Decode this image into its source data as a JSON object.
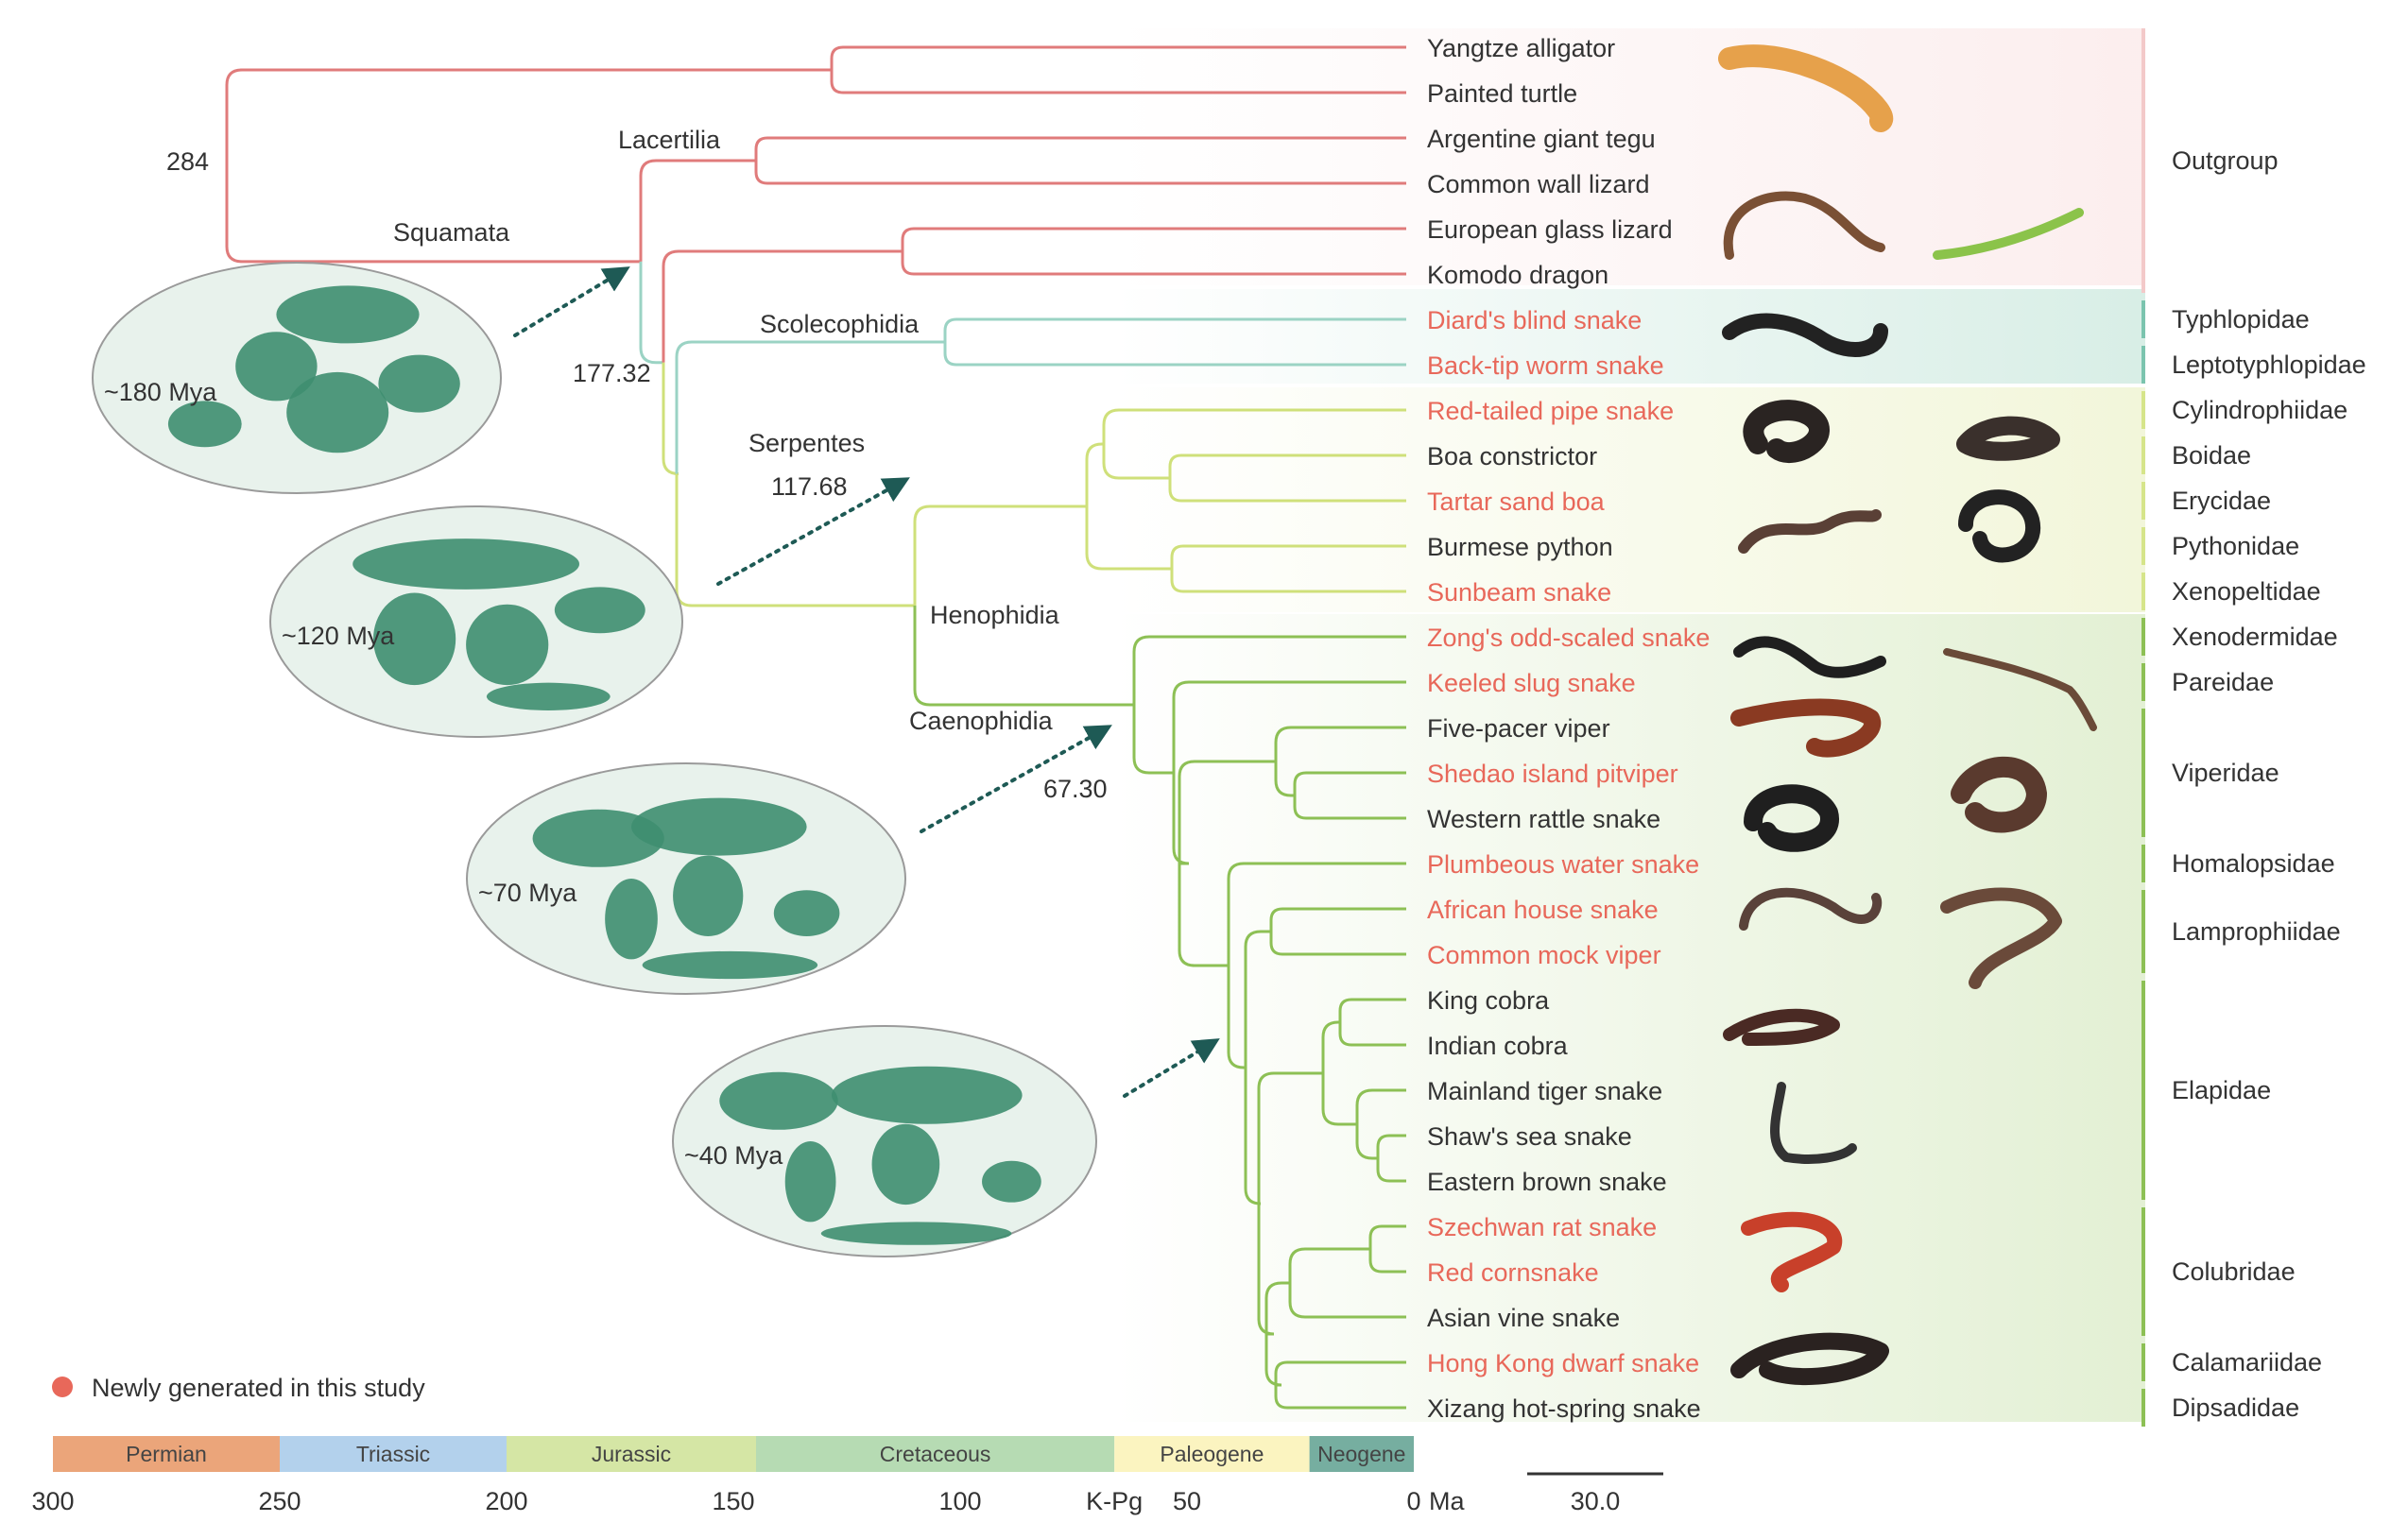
{
  "colors": {
    "outgroup": "#E07B7B",
    "scoleco": "#9BD3C4",
    "henophidia": "#CFE07A",
    "caenophidia": "#8DC055",
    "highlight": "#E8685A",
    "label": "#333333",
    "map_land": "#3E8E70",
    "map_sea": "#E8F2EC",
    "arrow": "#1E5A55"
  },
  "species": [
    {
      "name": "Yangtze alligator",
      "new": false
    },
    {
      "name": "Painted turtle",
      "new": false
    },
    {
      "name": "Argentine giant tegu",
      "new": false
    },
    {
      "name": "Common wall lizard",
      "new": false
    },
    {
      "name": "European glass lizard",
      "new": false
    },
    {
      "name": "Komodo dragon",
      "new": false
    },
    {
      "name": "Diard's blind snake",
      "new": true
    },
    {
      "name": "Back-tip worm snake",
      "new": true
    },
    {
      "name": "Red-tailed pipe snake",
      "new": true
    },
    {
      "name": "Boa constrictor",
      "new": false
    },
    {
      "name": "Tartar sand boa",
      "new": true
    },
    {
      "name": "Burmese python",
      "new": false
    },
    {
      "name": "Sunbeam snake",
      "new": true
    },
    {
      "name": "Zong's odd-scaled snake",
      "new": true
    },
    {
      "name": "Keeled slug snake",
      "new": true
    },
    {
      "name": "Five-pacer viper",
      "new": false
    },
    {
      "name": "Shedao island pitviper",
      "new": true
    },
    {
      "name": "Western rattle snake",
      "new": false
    },
    {
      "name": "Plumbeous water snake",
      "new": true
    },
    {
      "name": "African house snake",
      "new": true
    },
    {
      "name": "Common mock viper",
      "new": true
    },
    {
      "name": "King cobra",
      "new": false
    },
    {
      "name": "Indian cobra",
      "new": false
    },
    {
      "name": "Mainland tiger snake",
      "new": false
    },
    {
      "name": "Shaw's sea snake",
      "new": false
    },
    {
      "name": "Eastern brown snake",
      "new": false
    },
    {
      "name": "Szechwan rat snake",
      "new": true
    },
    {
      "name": "Red cornsnake",
      "new": true
    },
    {
      "name": "Asian vine snake",
      "new": false
    },
    {
      "name": "Hong Kong dwarf snake",
      "new": true
    },
    {
      "name": "Xizang hot-spring snake",
      "new": false
    }
  ],
  "families": [
    {
      "name": "Outgroup",
      "from": 0,
      "to": 5
    },
    {
      "name": "Typhlopidae",
      "from": 6,
      "to": 6
    },
    {
      "name": "Leptotyphlopidae",
      "from": 7,
      "to": 7
    },
    {
      "name": "Cylindrophiidae",
      "from": 8,
      "to": 8
    },
    {
      "name": "Boidae",
      "from": 9,
      "to": 9
    },
    {
      "name": "Erycidae",
      "from": 10,
      "to": 10
    },
    {
      "name": "Pythonidae",
      "from": 11,
      "to": 11
    },
    {
      "name": "Xenopeltidae",
      "from": 12,
      "to": 12
    },
    {
      "name": "Xenodermidae",
      "from": 13,
      "to": 13
    },
    {
      "name": "Pareidae",
      "from": 14,
      "to": 14
    },
    {
      "name": "Viperidae",
      "from": 15,
      "to": 17
    },
    {
      "name": "Homalopsidae",
      "from": 18,
      "to": 18
    },
    {
      "name": "Lamprophiidae",
      "from": 19,
      "to": 20
    },
    {
      "name": "Elapidae",
      "from": 21,
      "to": 25
    },
    {
      "name": "Colubridae",
      "from": 26,
      "to": 28
    },
    {
      "name": "Calamariidae",
      "from": 29,
      "to": 29
    },
    {
      "name": "Dipsadidae",
      "from": 30,
      "to": 30
    }
  ],
  "clades": {
    "squamata": "Squamata",
    "lacertilia": "Lacertilia",
    "scolecophidia": "Scolecophidia",
    "serpentes": "Serpentes",
    "henophidia": "Henophidia",
    "caenophidia": "Caenophidia"
  },
  "node_ages": {
    "root": "284",
    "squamata": "177.32",
    "serpentes": "117.68",
    "caenophidia": "67.30"
  },
  "maps": [
    {
      "label": "~180 Mya"
    },
    {
      "label": "~120 Mya"
    },
    {
      "label": "~70 Mya"
    },
    {
      "label": "~40 Mya"
    }
  ],
  "legend": {
    "new_label": "Newly generated in this study"
  },
  "timescale": {
    "periods": [
      {
        "name": "Permian",
        "start": 300,
        "end": 250,
        "color": "#EBA57A"
      },
      {
        "name": "Triassic",
        "start": 250,
        "end": 200,
        "color": "#B3D1EC"
      },
      {
        "name": "Jurassic",
        "start": 200,
        "end": 145,
        "color": "#D5E6A5"
      },
      {
        "name": "Cretaceous",
        "start": 145,
        "end": 66,
        "color": "#B6DBB3"
      },
      {
        "name": "Paleogene",
        "start": 66,
        "end": 23,
        "color": "#FBF4C0"
      },
      {
        "name": "Neogene",
        "start": 23,
        "end": 0,
        "color": "#76AEA0"
      }
    ],
    "ticks": [
      "300",
      "250",
      "200",
      "150",
      "100",
      "K-Pg",
      "50",
      "0"
    ],
    "tick_values": [
      300,
      250,
      200,
      150,
      100,
      66,
      50,
      0
    ],
    "unit": "Ma",
    "scale_bar": "30.0"
  }
}
